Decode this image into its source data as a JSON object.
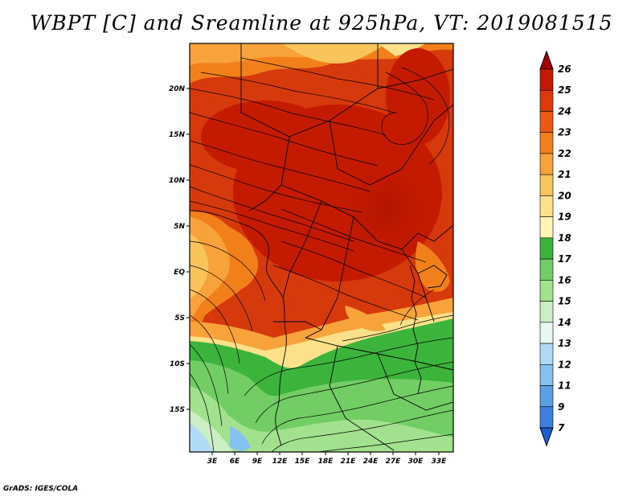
{
  "title": "WBPT [C] and Sreamline at 925hPa, VT: 2019081515",
  "credit": "GrADS: IGES/COLA",
  "map": {
    "lat_labels": [
      "20N",
      "15N",
      "10N",
      "5N",
      "EQ",
      "5S",
      "10S",
      "15S"
    ],
    "lon_labels": [
      "3E",
      "6E",
      "9E",
      "12E",
      "15E",
      "18E",
      "21E",
      "24E",
      "27E",
      "30E",
      "33E"
    ]
  },
  "colorbar": {
    "labels": [
      "26",
      "25",
      "24",
      "23",
      "22",
      "21",
      "20",
      "19",
      "18",
      "17",
      "16",
      "15",
      "14",
      "13",
      "12",
      "11",
      "9",
      "7"
    ],
    "colors": [
      "#a50000",
      "#c41a00",
      "#dc3a0a",
      "#ea5a12",
      "#f2801a",
      "#f7a23a",
      "#fac45c",
      "#fde08a",
      "#fff4b4",
      "#3cb43c",
      "#72cd64",
      "#a2e28e",
      "#cceec4",
      "#e8f8f0",
      "#b0daf6",
      "#84c0f0",
      "#5aa0e6",
      "#3a80dc",
      "#1c5ed0"
    ]
  }
}
